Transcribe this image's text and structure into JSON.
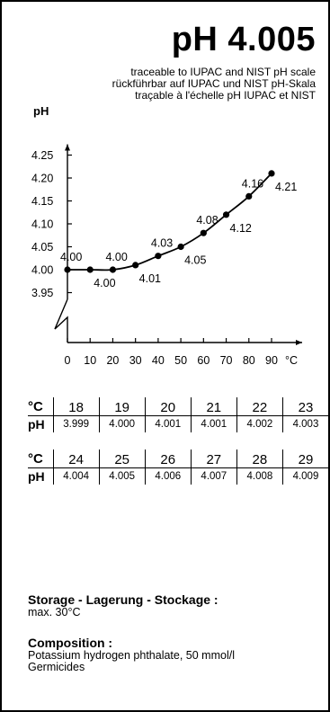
{
  "title": "pH 4.005",
  "traceability": [
    "traceable to IUPAC and NIST pH scale",
    "rückführbar auf IUPAC und NIST pH-Skala",
    "traçable à l'échelle pH IUPAC et NIST"
  ],
  "chart_data": {
    "type": "line",
    "ylabel": "pH",
    "xlabel": "°C",
    "x_ticks": [
      0,
      10,
      20,
      30,
      40,
      50,
      60,
      70,
      80,
      90
    ],
    "y_ticks": [
      3.95,
      4.0,
      4.05,
      4.1,
      4.15,
      4.2,
      4.25
    ],
    "y_tick_labels": [
      "3.95",
      "4.00",
      "4.05",
      "4.10",
      "4.15",
      "4.20",
      "4.25"
    ],
    "x": [
      0,
      10,
      20,
      30,
      40,
      50,
      60,
      70,
      80,
      90
    ],
    "values": [
      4.0,
      4.0,
      4.0,
      4.01,
      4.03,
      4.05,
      4.08,
      4.12,
      4.16,
      4.21
    ],
    "point_labels": [
      "4.00",
      "4.00",
      "4.00",
      "4.01",
      "4.03",
      "4.05",
      "4.08",
      "4.12",
      "4.16",
      "4.21"
    ],
    "xlim": [
      0,
      90
    ],
    "ylim": [
      3.95,
      4.25
    ],
    "axis_break": true,
    "grid": false,
    "color": "#000000"
  },
  "tables": [
    {
      "temp_label": "°C",
      "ph_label": "pH",
      "temps": [
        "18",
        "19",
        "20",
        "21",
        "22",
        "23"
      ],
      "values": [
        "3.999",
        "4.000",
        "4.001",
        "4.001",
        "4.002",
        "4.003"
      ]
    },
    {
      "temp_label": "°C",
      "ph_label": "pH",
      "temps": [
        "24",
        "25",
        "26",
        "27",
        "28",
        "29"
      ],
      "values": [
        "4.004",
        "4.005",
        "4.006",
        "4.007",
        "4.008",
        "4.009"
      ]
    }
  ],
  "storage": {
    "heading": "Storage - Lagerung - Stockage :",
    "text": "max. 30°C"
  },
  "composition": {
    "heading": "Composition :",
    "lines": [
      "Potassium hydrogen phthalate, 50 mmol/l",
      "Germicides"
    ]
  }
}
